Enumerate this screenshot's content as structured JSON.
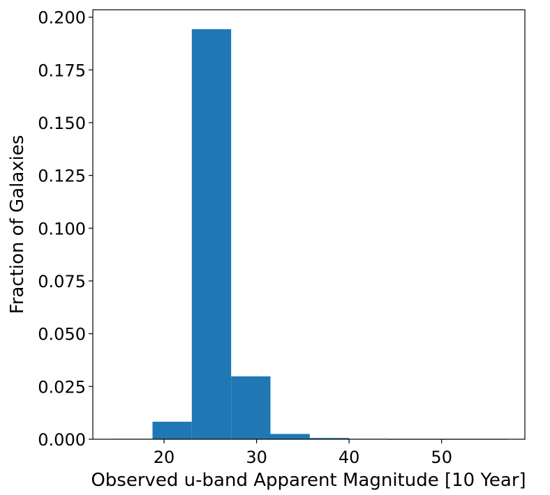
{
  "chart_data": {
    "type": "bar",
    "title": "",
    "xlabel": "Observed u-band Apparent Magnitude [10 Year]",
    "ylabel": "Fraction of Galaxies",
    "xlim": [
      12.3,
      59.0
    ],
    "ylim": [
      0.0,
      0.2035
    ],
    "x_ticks": [
      20,
      30,
      40,
      50
    ],
    "x_tick_labels": [
      "20",
      "30",
      "40",
      "50"
    ],
    "y_ticks": [
      0.0,
      0.025,
      0.05,
      0.075,
      0.1,
      0.125,
      0.15,
      0.175,
      0.2
    ],
    "y_tick_labels": [
      "0.000",
      "0.025",
      "0.050",
      "0.075",
      "0.100",
      "0.125",
      "0.150",
      "0.175",
      "0.200"
    ],
    "bins": [
      {
        "x0": 14.5,
        "x1": 18.75,
        "value": 0.0002
      },
      {
        "x0": 18.75,
        "x1": 23.0,
        "value": 0.0083
      },
      {
        "x0": 23.0,
        "x1": 27.25,
        "value": 0.1943
      },
      {
        "x0": 27.25,
        "x1": 31.5,
        "value": 0.0298
      },
      {
        "x0": 31.5,
        "x1": 35.75,
        "value": 0.0025
      },
      {
        "x0": 35.75,
        "x1": 40.0,
        "value": 0.0006
      },
      {
        "x0": 40.0,
        "x1": 44.25,
        "value": 0.0002
      },
      {
        "x0": 44.25,
        "x1": 48.5,
        "value": 0.0001
      },
      {
        "x0": 48.5,
        "x1": 52.75,
        "value": 0.0001
      },
      {
        "x0": 52.75,
        "x1": 57.0,
        "value": 0.0001
      }
    ],
    "bar_color": "#1f77b4",
    "grid": false,
    "legend": "none"
  }
}
